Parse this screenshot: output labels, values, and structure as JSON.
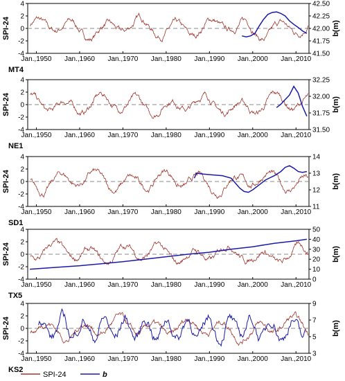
{
  "chart_data": {
    "type": "line",
    "x_tick_labels": [
      "Jan.,1950",
      "Jan.,1960",
      "Jan.,1970",
      "Jan.,1980",
      "Jan.,1990",
      "Jan.,2000",
      "Jan.,2010"
    ],
    "x_tick_years": [
      1950,
      1960,
      1970,
      1980,
      1990,
      2000,
      2010
    ],
    "xlim": [
      1948,
      2013
    ],
    "left_axis_label": "SPI-24",
    "right_axis_label": "b(m)",
    "legend": {
      "placement": "bottom-left",
      "entries": [
        {
          "label": "SPI-24",
          "color": "#a0342c"
        },
        {
          "label": "b",
          "color": "#1a1aa8"
        }
      ]
    },
    "colors": {
      "spi": "#a0342c",
      "b": "#1a1aa8",
      "zero_line": "#888888"
    },
    "panels": [
      {
        "site": "MT4",
        "ylim_left": [
          -4,
          4
        ],
        "yticks_left": [
          -4,
          -2,
          0,
          2,
          4
        ],
        "ylim_right": [
          41.5,
          42.5
        ],
        "yticks_right": [
          "41.50",
          "41.75",
          "42.00",
          "42.25",
          "42.50"
        ],
        "b_series": [
          [
            1997.5,
            41.85
          ],
          [
            1998.5,
            41.83
          ],
          [
            1999.5,
            41.85
          ],
          [
            2000.5,
            41.9
          ],
          [
            2001.5,
            42.05
          ],
          [
            2002.5,
            42.18
          ],
          [
            2003.5,
            42.28
          ],
          [
            2004.5,
            42.32
          ],
          [
            2005.5,
            42.33
          ],
          [
            2006.5,
            42.3
          ],
          [
            2007.5,
            42.25
          ],
          [
            2008.5,
            42.15
          ],
          [
            2009.5,
            42.08
          ],
          [
            2010.5,
            42.02
          ],
          [
            2011.5,
            41.95
          ],
          [
            2012.5,
            41.9
          ]
        ]
      },
      {
        "site": "NE1",
        "ylim_left": [
          -4,
          4
        ],
        "yticks_left": [
          -4,
          -2,
          0,
          2,
          4
        ],
        "ylim_right": [
          31.5,
          32.25
        ],
        "yticks_right": [
          "31.50",
          "31.75",
          "32.00",
          "32.25"
        ],
        "b_series": [
          [
            2005.5,
            31.83
          ],
          [
            2006.5,
            31.88
          ],
          [
            2007.5,
            31.95
          ],
          [
            2008.5,
            32.02
          ],
          [
            2009.5,
            32.15
          ],
          [
            2010.5,
            32.05
          ],
          [
            2011.5,
            31.85
          ],
          [
            2012.5,
            31.7
          ]
        ]
      },
      {
        "site": "SD1",
        "ylim_left": [
          -4,
          4
        ],
        "yticks_left": [
          -4,
          -2,
          0,
          2,
          4
        ],
        "ylim_right": [
          11,
          14
        ],
        "yticks_right": [
          "11",
          "12",
          "13",
          "14"
        ],
        "b_series": [
          [
            1986.5,
            12.7
          ],
          [
            1987,
            13.0
          ],
          [
            1988.5,
            12.95
          ],
          [
            1990.5,
            12.9
          ],
          [
            1993,
            12.85
          ],
          [
            1995,
            12.7
          ],
          [
            1996,
            12.4
          ],
          [
            1997,
            12.1
          ],
          [
            1998,
            11.9
          ],
          [
            1999,
            11.85
          ],
          [
            2000,
            12.0
          ],
          [
            2001.5,
            12.3
          ],
          [
            2003,
            12.6
          ],
          [
            2005,
            12.85
          ],
          [
            2006.5,
            13.1
          ],
          [
            2007.5,
            13.35
          ],
          [
            2008.5,
            13.45
          ],
          [
            2009.5,
            13.3
          ],
          [
            2010.5,
            13.1
          ],
          [
            2011.5,
            13.05
          ],
          [
            2012.5,
            13.1
          ]
        ]
      },
      {
        "site": "TX5",
        "ylim_left": [
          -4,
          4
        ],
        "yticks_left": [
          -4,
          -2,
          0,
          2,
          4
        ],
        "ylim_right": [
          0,
          50
        ],
        "yticks_right": [
          "0",
          "10",
          "20",
          "30",
          "40",
          "50"
        ],
        "b_series": [
          [
            1948.5,
            10
          ],
          [
            1955,
            12
          ],
          [
            1960,
            13.5
          ],
          [
            1965,
            15.5
          ],
          [
            1970,
            17.5
          ],
          [
            1975,
            20
          ],
          [
            1980,
            22.5
          ],
          [
            1985,
            25
          ],
          [
            1990,
            27
          ],
          [
            1995,
            30
          ],
          [
            2000,
            32.5
          ],
          [
            2005,
            36
          ],
          [
            2010,
            38.5
          ],
          [
            2012.5,
            40
          ]
        ]
      },
      {
        "site": "KS2",
        "ylim_left": [
          -4,
          4
        ],
        "yticks_left": [
          -4,
          -2,
          0,
          2,
          4
        ],
        "ylim_right": [
          3,
          9
        ],
        "yticks_right": [
          "3",
          "5",
          "7",
          "9"
        ],
        "b_series": []
      }
    ]
  }
}
